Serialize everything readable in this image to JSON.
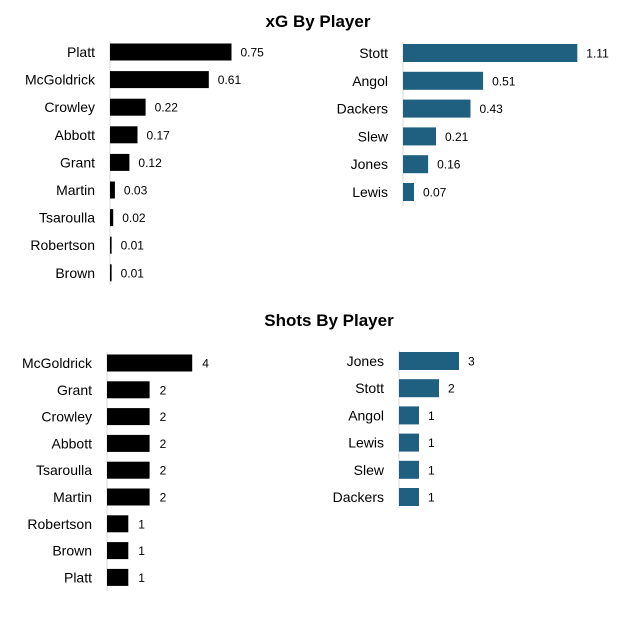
{
  "colors": {
    "left": "#000000",
    "right": "#1f5f80"
  },
  "titles": {
    "xg": "xG By Player",
    "shots": "Shots By Player"
  },
  "chart_data": [
    {
      "type": "bar",
      "orientation": "horizontal",
      "group": "xG By Player",
      "title": "xG By Player",
      "categories": [
        "Platt",
        "McGoldrick",
        "Crowley",
        "Abbott",
        "Grant",
        "Martin",
        "Tsaroulla",
        "Robertson",
        "Brown"
      ],
      "values": [
        0.75,
        0.61,
        0.22,
        0.17,
        0.12,
        0.03,
        0.02,
        0.01,
        0.01
      ],
      "labels": [
        "0.75",
        "0.61",
        "0.22",
        "0.17",
        "0.12",
        "0.03",
        "0.02",
        "0.01",
        "0.01"
      ],
      "color": "#000000"
    },
    {
      "type": "bar",
      "orientation": "horizontal",
      "group": "xG By Player",
      "categories": [
        "Stott",
        "Angol",
        "Dackers",
        "Slew",
        "Jones",
        "Lewis"
      ],
      "values": [
        1.11,
        0.51,
        0.43,
        0.21,
        0.16,
        0.07
      ],
      "labels": [
        "1.11",
        "0.51",
        "0.43",
        "0.21",
        "0.16",
        "0.07"
      ],
      "color": "#1f5f80"
    },
    {
      "type": "bar",
      "orientation": "horizontal",
      "group": "Shots By Player",
      "title": "Shots By Player",
      "categories": [
        "McGoldrick",
        "Grant",
        "Crowley",
        "Abbott",
        "Tsaroulla",
        "Martin",
        "Robertson",
        "Brown",
        "Platt"
      ],
      "values": [
        4,
        2,
        2,
        2,
        2,
        2,
        1,
        1,
        1
      ],
      "labels": [
        "4",
        "2",
        "2",
        "2",
        "2",
        "2",
        "1",
        "1",
        "1"
      ],
      "color": "#000000"
    },
    {
      "type": "bar",
      "orientation": "horizontal",
      "group": "Shots By Player",
      "categories": [
        "Jones",
        "Stott",
        "Angol",
        "Lewis",
        "Slew",
        "Dackers"
      ],
      "values": [
        3,
        2,
        1,
        1,
        1,
        1
      ],
      "labels": [
        "3",
        "2",
        "1",
        "1",
        "1",
        "1"
      ],
      "color": "#1f5f80"
    }
  ]
}
